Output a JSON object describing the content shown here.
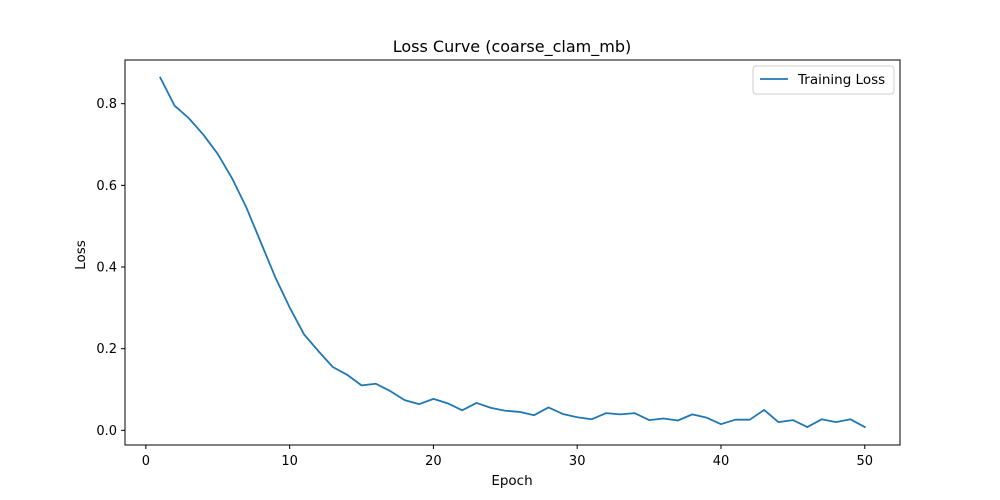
{
  "colors": {
    "series": "#1f77b4",
    "axes": "#000000",
    "legend_border": "#cccccc",
    "background": "#ffffff"
  },
  "chart_data": {
    "type": "line",
    "title": "Loss Curve (coarse_clam_mb)",
    "xlabel": "Epoch",
    "ylabel": "Loss",
    "xlim": [
      -1.45,
      52.45
    ],
    "ylim": [
      -0.036,
      0.907
    ],
    "x_ticks": [
      0,
      10,
      20,
      30,
      40,
      50
    ],
    "y_ticks": [
      0.0,
      0.2,
      0.4,
      0.6,
      0.8
    ],
    "x_tick_labels": [
      "0",
      "10",
      "20",
      "30",
      "40",
      "50"
    ],
    "y_tick_labels": [
      "0.0",
      "0.2",
      "0.4",
      "0.6",
      "0.8"
    ],
    "grid": false,
    "legend": {
      "position": "top-right",
      "entries": [
        "Training Loss"
      ]
    },
    "series": [
      {
        "name": "Training Loss",
        "x": [
          1,
          2,
          3,
          4,
          5,
          6,
          7,
          8,
          9,
          10,
          11,
          12,
          13,
          14,
          15,
          16,
          17,
          18,
          19,
          20,
          21,
          22,
          23,
          24,
          25,
          26,
          27,
          28,
          29,
          30,
          31,
          32,
          33,
          34,
          35,
          36,
          37,
          38,
          39,
          40,
          41,
          42,
          43,
          44,
          45,
          46,
          47,
          48,
          49,
          50
        ],
        "values": [
          0.864,
          0.795,
          0.764,
          0.724,
          0.677,
          0.617,
          0.545,
          0.46,
          0.375,
          0.301,
          0.235,
          0.194,
          0.155,
          0.136,
          0.11,
          0.114,
          0.096,
          0.074,
          0.064,
          0.077,
          0.066,
          0.049,
          0.067,
          0.055,
          0.048,
          0.045,
          0.037,
          0.056,
          0.04,
          0.032,
          0.027,
          0.042,
          0.039,
          0.042,
          0.025,
          0.029,
          0.024,
          0.039,
          0.031,
          0.015,
          0.026,
          0.026,
          0.05,
          0.02,
          0.025,
          0.008,
          0.027,
          0.02,
          0.027,
          0.008
        ]
      }
    ]
  }
}
